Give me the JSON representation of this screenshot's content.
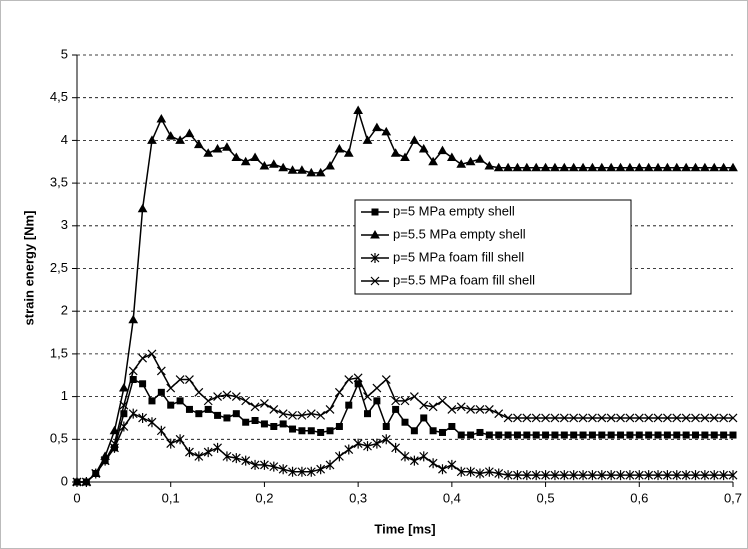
{
  "chart_data": {
    "type": "line",
    "xlabel": "Time [ms]",
    "ylabel": "strain energy [Nm]",
    "x": [
      0,
      0.01,
      0.02,
      0.03,
      0.04,
      0.05,
      0.06,
      0.07,
      0.08,
      0.09,
      0.1,
      0.11,
      0.12,
      0.13,
      0.14,
      0.15,
      0.16,
      0.17,
      0.18,
      0.19,
      0.2,
      0.21,
      0.22,
      0.23,
      0.24,
      0.25,
      0.26,
      0.27,
      0.28,
      0.29,
      0.3,
      0.31,
      0.32,
      0.33,
      0.34,
      0.35,
      0.36,
      0.37,
      0.38,
      0.39,
      0.4,
      0.41,
      0.42,
      0.43,
      0.44,
      0.45,
      0.46,
      0.47,
      0.48,
      0.49,
      0.5,
      0.51,
      0.52,
      0.53,
      0.54,
      0.55,
      0.56,
      0.57,
      0.58,
      0.59,
      0.6,
      0.61,
      0.62,
      0.63,
      0.64,
      0.65,
      0.66,
      0.67,
      0.68,
      0.69,
      0.7
    ],
    "series": [
      {
        "name": "p=5 MPa empty shell",
        "color": "#000000",
        "marker": "square",
        "values": [
          0,
          0,
          0.1,
          0.25,
          0.4,
          0.8,
          1.2,
          1.15,
          0.95,
          1.05,
          0.9,
          0.95,
          0.85,
          0.8,
          0.85,
          0.78,
          0.75,
          0.8,
          0.7,
          0.72,
          0.68,
          0.65,
          0.68,
          0.62,
          0.6,
          0.6,
          0.58,
          0.6,
          0.65,
          0.9,
          1.15,
          0.8,
          0.95,
          0.65,
          0.85,
          0.7,
          0.6,
          0.75,
          0.6,
          0.58,
          0.65,
          0.55,
          0.55,
          0.58,
          0.55,
          0.55,
          0.55,
          0.55,
          0.55,
          0.55,
          0.55,
          0.55,
          0.55,
          0.55,
          0.55,
          0.55,
          0.55,
          0.55,
          0.55,
          0.55,
          0.55,
          0.55,
          0.55,
          0.55,
          0.55,
          0.55,
          0.55,
          0.55,
          0.55,
          0.55,
          0.55
        ]
      },
      {
        "name": "p=5.5 MPa empty shell",
        "color": "#000000",
        "marker": "triangle",
        "values": [
          0,
          0,
          0.1,
          0.3,
          0.6,
          1.1,
          1.9,
          3.2,
          4.0,
          4.25,
          4.05,
          4.0,
          4.08,
          3.95,
          3.85,
          3.9,
          3.92,
          3.8,
          3.75,
          3.8,
          3.7,
          3.72,
          3.68,
          3.65,
          3.65,
          3.62,
          3.62,
          3.7,
          3.9,
          3.85,
          4.35,
          4.0,
          4.15,
          4.1,
          3.85,
          3.8,
          4.0,
          3.9,
          3.75,
          3.88,
          3.8,
          3.72,
          3.75,
          3.78,
          3.7,
          3.68,
          3.68,
          3.68,
          3.68,
          3.68,
          3.68,
          3.68,
          3.68,
          3.68,
          3.68,
          3.68,
          3.68,
          3.68,
          3.68,
          3.68,
          3.68,
          3.68,
          3.68,
          3.68,
          3.68,
          3.68,
          3.68,
          3.68,
          3.68,
          3.68,
          3.68
        ]
      },
      {
        "name": "p=5 MPa foam fill shell",
        "color": "#000000",
        "marker": "star",
        "values": [
          0,
          0,
          0.1,
          0.25,
          0.4,
          0.65,
          0.8,
          0.75,
          0.7,
          0.6,
          0.45,
          0.5,
          0.35,
          0.3,
          0.35,
          0.4,
          0.3,
          0.28,
          0.25,
          0.2,
          0.2,
          0.18,
          0.15,
          0.12,
          0.12,
          0.12,
          0.15,
          0.2,
          0.3,
          0.38,
          0.45,
          0.42,
          0.45,
          0.5,
          0.4,
          0.3,
          0.25,
          0.3,
          0.22,
          0.15,
          0.2,
          0.12,
          0.12,
          0.1,
          0.12,
          0.1,
          0.08,
          0.08,
          0.08,
          0.08,
          0.08,
          0.08,
          0.08,
          0.08,
          0.08,
          0.08,
          0.08,
          0.08,
          0.08,
          0.08,
          0.08,
          0.08,
          0.08,
          0.08,
          0.08,
          0.08,
          0.08,
          0.08,
          0.08,
          0.08,
          0.08
        ]
      },
      {
        "name": "p=5.5 MPa foam fill shell",
        "color": "#000000",
        "marker": "x",
        "values": [
          0,
          0,
          0.1,
          0.25,
          0.45,
          0.9,
          1.3,
          1.45,
          1.5,
          1.3,
          1.1,
          1.2,
          1.2,
          1.05,
          0.95,
          1.0,
          1.02,
          1.0,
          0.95,
          0.88,
          0.92,
          0.85,
          0.8,
          0.78,
          0.78,
          0.8,
          0.78,
          0.85,
          1.05,
          1.2,
          1.22,
          1.0,
          1.1,
          1.2,
          0.95,
          0.95,
          1.0,
          0.9,
          0.88,
          0.95,
          0.85,
          0.88,
          0.85,
          0.85,
          0.85,
          0.8,
          0.75,
          0.75,
          0.75,
          0.75,
          0.75,
          0.75,
          0.75,
          0.75,
          0.75,
          0.75,
          0.75,
          0.75,
          0.75,
          0.75,
          0.75,
          0.75,
          0.75,
          0.75,
          0.75,
          0.75,
          0.75,
          0.75,
          0.75,
          0.75,
          0.75
        ]
      }
    ],
    "xlim": [
      0,
      0.7
    ],
    "xticks": [
      0,
      {
        "value": 0.1,
        "label": "0,1"
      },
      {
        "value": 0.2,
        "label": "0,2"
      },
      {
        "value": 0.3,
        "label": "0,3"
      },
      {
        "value": 0.4,
        "label": "0,4"
      },
      {
        "value": 0.5,
        "label": "0,5"
      },
      {
        "value": 0.6,
        "label": "0,6"
      },
      {
        "value": 0.7,
        "label": "0,7"
      }
    ],
    "ylim": [
      0,
      5
    ],
    "yticks": [
      0,
      {
        "value": 0.5,
        "label": "0,5"
      },
      1,
      {
        "value": 1.5,
        "label": "1,5"
      },
      2,
      {
        "value": 2.5,
        "label": "2,5"
      },
      3,
      {
        "value": 3.5,
        "label": "3,5"
      },
      4,
      {
        "value": 4.5,
        "label": "4,5"
      },
      5
    ],
    "grid": true
  }
}
